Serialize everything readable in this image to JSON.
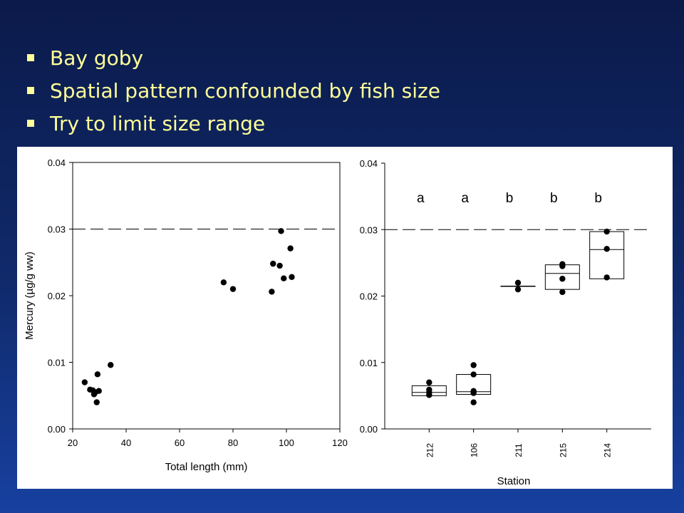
{
  "slide": {
    "bullets": [
      "Bay goby",
      "Spatial pattern confounded by fish size",
      "Try to limit size range"
    ],
    "colors": {
      "background": "#102a6b",
      "bullet_text": "#ffff99"
    }
  },
  "chart_data": [
    {
      "type": "scatter",
      "xlabel": "Total length (mm)",
      "ylabel": "Mercury (µg/g ww)",
      "xlim": [
        20,
        120
      ],
      "ylim": [
        0,
        0.04
      ],
      "xticks": [
        "20",
        "40",
        "60",
        "80",
        "100",
        "120"
      ],
      "yticks": [
        "0.00",
        "0.01",
        "0.02",
        "0.03",
        "0.04"
      ],
      "reference_line": 0.03,
      "points": [
        {
          "x": 24.5,
          "y": 0.007
        },
        {
          "x": 26.5,
          "y": 0.0059
        },
        {
          "x": 27.5,
          "y": 0.0058
        },
        {
          "x": 28,
          "y": 0.0052
        },
        {
          "x": 28.5,
          "y": 0.0055
        },
        {
          "x": 29,
          "y": 0.004
        },
        {
          "x": 29.3,
          "y": 0.0082
        },
        {
          "x": 29.8,
          "y": 0.0057
        },
        {
          "x": 34.2,
          "y": 0.0096
        },
        {
          "x": 76.5,
          "y": 0.022
        },
        {
          "x": 80,
          "y": 0.021
        },
        {
          "x": 94.5,
          "y": 0.0206
        },
        {
          "x": 95,
          "y": 0.0248
        },
        {
          "x": 97.5,
          "y": 0.0245
        },
        {
          "x": 98,
          "y": 0.0297
        },
        {
          "x": 99,
          "y": 0.0226
        },
        {
          "x": 101.5,
          "y": 0.0271
        },
        {
          "x": 102,
          "y": 0.0228
        }
      ]
    },
    {
      "type": "box",
      "xlabel": "Station",
      "ylabel": "",
      "ylim": [
        0,
        0.04
      ],
      "yticks": [
        "0.00",
        "0.01",
        "0.02",
        "0.03",
        "0.04"
      ],
      "reference_line": 0.03,
      "categories": [
        "212",
        "106",
        "211",
        "215",
        "214"
      ],
      "letters": [
        "a",
        "a",
        "b",
        "b",
        "b"
      ],
      "boxes": [
        {
          "q1": 0.005,
          "median": 0.0055,
          "q3": 0.0065,
          "points": [
            0.0051,
            0.0055,
            0.0059,
            0.007
          ]
        },
        {
          "q1": 0.0052,
          "median": 0.0056,
          "q3": 0.0082,
          "points": [
            0.004,
            0.0054,
            0.0057,
            0.0082,
            0.0096
          ]
        },
        {
          "q1": 0.0215,
          "median": 0.0215,
          "q3": 0.0215,
          "points": [
            0.021,
            0.022
          ]
        },
        {
          "q1": 0.021,
          "median": 0.0234,
          "q3": 0.0247,
          "points": [
            0.0206,
            0.0226,
            0.0245,
            0.0248
          ]
        },
        {
          "q1": 0.0226,
          "median": 0.027,
          "q3": 0.0297,
          "points": [
            0.0228,
            0.0271,
            0.0297
          ]
        }
      ]
    }
  ]
}
